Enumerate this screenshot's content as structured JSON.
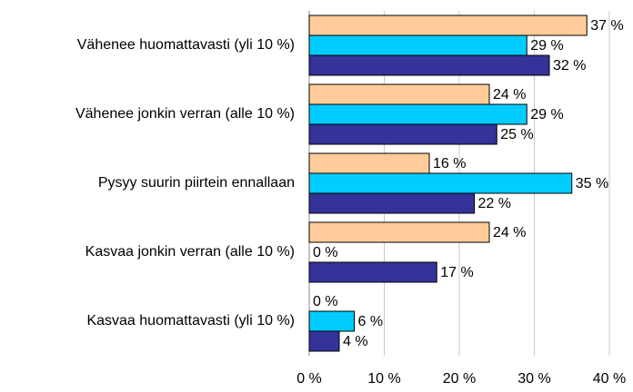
{
  "chart_data": {
    "type": "bar",
    "orientation": "horizontal",
    "categories": [
      "Vähenee huomattavasti (yli 10 %)",
      "Vähenee jonkin verran (alle 10 %)",
      "Pysyy suurin piirtein ennallaan",
      "Kasvaa jonkin verran (alle 10 %)",
      "Kasvaa huomattavasti (yli 10 %)"
    ],
    "series": [
      {
        "color": "#ffcc99",
        "values": [
          37,
          24,
          16,
          24,
          0
        ],
        "value_labels": [
          "37 %",
          "24 %",
          "16 %",
          "24 %",
          "0 %"
        ]
      },
      {
        "color": "#00ccff",
        "values": [
          29,
          29,
          35,
          0,
          6
        ],
        "value_labels": [
          "29 %",
          "29 %",
          "35 %",
          "0 %",
          "6 %"
        ]
      },
      {
        "color": "#333399",
        "values": [
          32,
          25,
          22,
          17,
          4
        ],
        "value_labels": [
          "32 %",
          "25 %",
          "22 %",
          "17 %",
          "4 %"
        ]
      }
    ],
    "xlim": [
      0,
      40
    ],
    "xticks": [
      {
        "value": 0,
        "label": "0 %"
      },
      {
        "value": 10,
        "label": "10 %"
      },
      {
        "value": 20,
        "label": "20 %"
      },
      {
        "value": 30,
        "label": "30 %"
      },
      {
        "value": 40,
        "label": "40 %"
      }
    ],
    "grid": true
  }
}
